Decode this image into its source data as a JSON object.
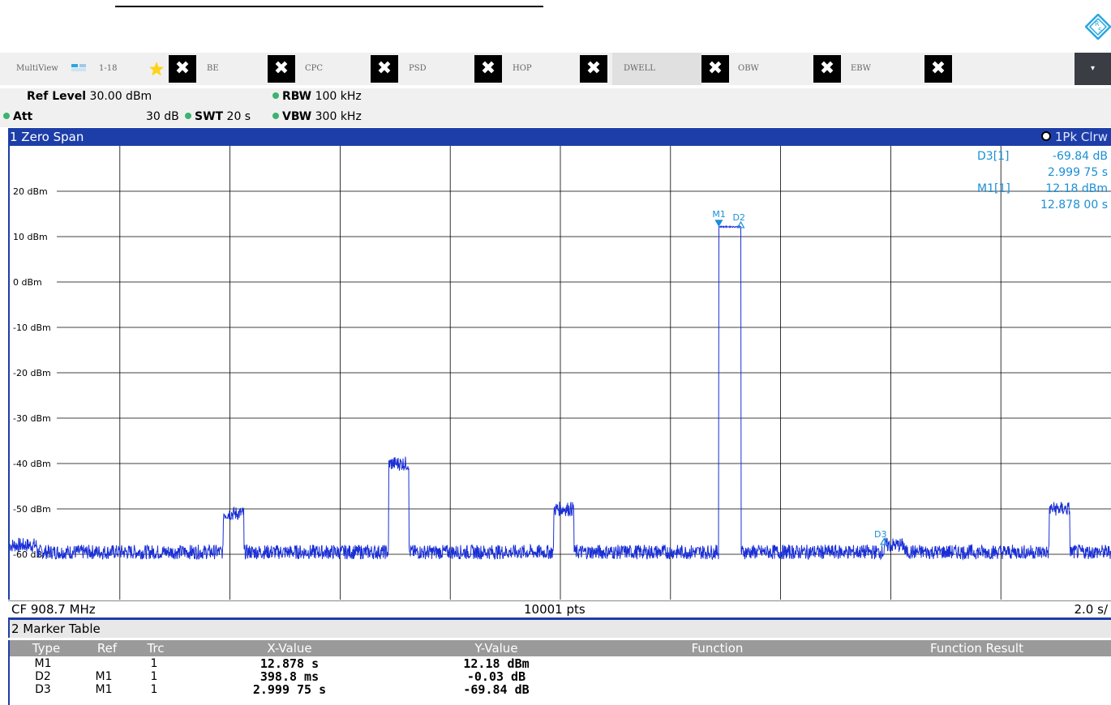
{
  "toolbar": {
    "multiview_label": "MultiView",
    "range_label": "1-18",
    "tabs": [
      {
        "label": "BE"
      },
      {
        "label": "CPC"
      },
      {
        "label": "PSD"
      },
      {
        "label": "HOP"
      },
      {
        "label": "DWELL",
        "active": true
      },
      {
        "label": "OBW"
      },
      {
        "label": "EBW"
      }
    ],
    "close_glyph": "✖",
    "dropdown_glyph": "▾"
  },
  "settings": {
    "ref_level_label": "Ref Level",
    "ref_level_value": "30.00 dBm",
    "att_label": "Att",
    "att_value": "30 dB",
    "swt_label": "SWT",
    "swt_value": "20 s",
    "rbw_label": "RBW",
    "rbw_value": "100 kHz",
    "vbw_label": "VBW",
    "vbw_value": "300 kHz"
  },
  "diagram": {
    "title": "1 Zero Span",
    "trace_label": "1Pk Clrw",
    "readouts": {
      "d3_label": "D3[1]",
      "d3_y": "-69.84 dB",
      "d3_x": "2.999 75 s",
      "m1_label": "M1[1]",
      "m1_y": "12.18 dBm",
      "m1_x": "12.878 00 s"
    },
    "markers": {
      "m1": "M1",
      "d2": "D2",
      "d3": "D3"
    },
    "footer": {
      "cf": "CF 908.7 MHz",
      "pts": "10001 pts",
      "div": "2.0 s/"
    }
  },
  "chart_data": {
    "type": "line",
    "title": "1 Zero Span",
    "y_ticks": [
      "20 dBm",
      "10 dBm",
      "0 dBm",
      "-10 dBm",
      "-20 dBm",
      "-30 dBm",
      "-40 dBm",
      "-50 dBm",
      "-60 dBm"
    ],
    "ylim": [
      -70,
      30
    ],
    "xlim": [
      0,
      20
    ],
    "noise_floor_dbm": -59.5,
    "bursts": [
      {
        "start_s": 0.0,
        "end_s": 0.5,
        "level_dbm": -58
      },
      {
        "start_s": 3.88,
        "end_s": 4.25,
        "level_dbm": -51
      },
      {
        "start_s": 6.88,
        "end_s": 7.25,
        "level_dbm": -40
      },
      {
        "start_s": 9.88,
        "end_s": 10.25,
        "level_dbm": -50
      },
      {
        "start_s": 12.878,
        "end_s": 13.277,
        "level_dbm": 12.18
      },
      {
        "start_s": 15.88,
        "end_s": 16.25,
        "level_dbm": -58
      },
      {
        "start_s": 18.88,
        "end_s": 19.25,
        "level_dbm": -50
      }
    ],
    "markers": [
      {
        "name": "M1",
        "x_s": 12.878,
        "y_dbm": 12.18
      },
      {
        "name": "D2",
        "x_s": 13.2768,
        "y_dbm": 12.15
      },
      {
        "name": "D3",
        "x_s": 15.877,
        "y_dbm": -57.66
      }
    ]
  },
  "marker_table": {
    "title": "2 Marker Table",
    "columns": [
      "Type",
      "Ref",
      "Trc",
      "X-Value",
      "Y-Value",
      "Function",
      "Function Result"
    ],
    "rows": [
      {
        "type": "M1",
        "ref": "",
        "trc": "1",
        "x": "12.878 s",
        "y": "12.18 dBm"
      },
      {
        "type": "D2",
        "ref": "M1",
        "trc": "1",
        "x": "398.8 ms",
        "y": "-0.03 dB"
      },
      {
        "type": "D3",
        "ref": "M1",
        "trc": "1",
        "x": "2.999 75 s",
        "y": "-69.84 dB"
      }
    ]
  },
  "colors": {
    "trace": "#1a2fd6",
    "marker": "#1b8fd6",
    "title_bar": "#1d3ea8",
    "grid": "#000000"
  }
}
